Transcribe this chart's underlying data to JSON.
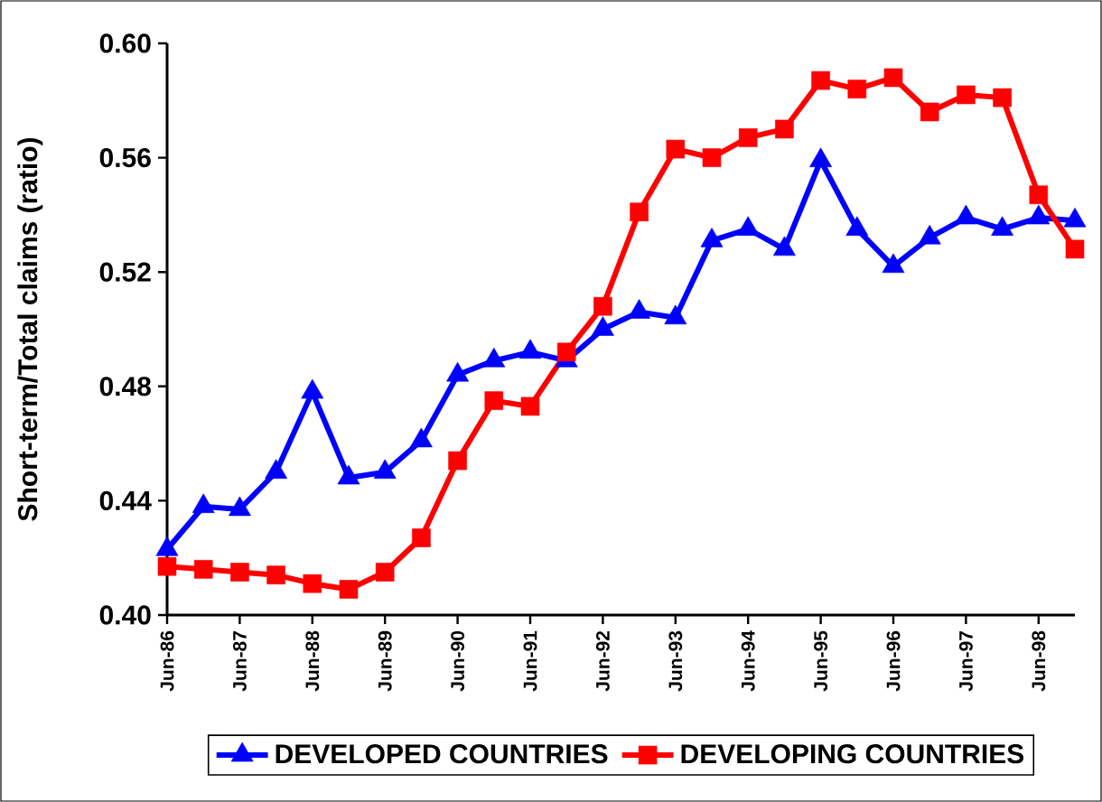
{
  "chart_data": {
    "type": "line",
    "ylabel": "Short-term/Total claims (ratio)",
    "categories": [
      "Jun-86",
      null,
      "Jun-87",
      null,
      "Jun-88",
      null,
      "Jun-89",
      null,
      "Jun-90",
      null,
      "Jun-91",
      null,
      "Jun-92",
      null,
      "Jun-93",
      null,
      "Jun-94",
      null,
      "Jun-95",
      null,
      "Jun-96",
      null,
      "Jun-97",
      null,
      "Jun-98",
      null
    ],
    "series": [
      {
        "name": "DEVELOPED COUNTRIES",
        "color": "#0000ff",
        "marker": "triangle",
        "values": [
          0.423,
          0.438,
          0.437,
          0.45,
          0.478,
          0.448,
          0.45,
          0.461,
          0.484,
          0.489,
          0.492,
          0.489,
          0.5,
          0.506,
          0.504,
          0.531,
          0.535,
          0.528,
          0.559,
          0.535,
          0.522,
          0.532,
          0.539,
          0.535,
          0.539,
          0.538
        ]
      },
      {
        "name": "DEVELOPING COUNTRIES",
        "color": "#ff0000",
        "marker": "square",
        "values": [
          0.417,
          0.416,
          0.415,
          0.414,
          0.411,
          0.409,
          0.415,
          0.427,
          0.454,
          0.475,
          0.473,
          0.492,
          0.508,
          0.541,
          0.563,
          0.56,
          0.567,
          0.57,
          0.587,
          0.584,
          0.588,
          0.576,
          0.582,
          0.581,
          0.547,
          0.528
        ]
      }
    ],
    "ylim": [
      0.4,
      0.6
    ],
    "yticks": [
      {
        "value": 0.4,
        "label": "0.40"
      },
      {
        "value": 0.44,
        "label": "0.44"
      },
      {
        "value": 0.48,
        "label": "0.48"
      },
      {
        "value": 0.52,
        "label": "0.52"
      },
      {
        "value": 0.56,
        "label": "0.56"
      },
      {
        "value": 0.6,
        "label": "0.60"
      }
    ],
    "legend": "bottom",
    "line_style": "solid",
    "grid": false
  }
}
